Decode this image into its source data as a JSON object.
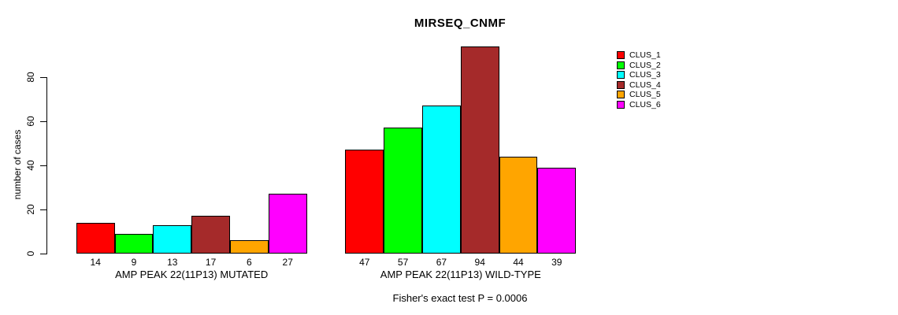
{
  "chart_data": {
    "type": "bar",
    "title": "MIRSEQ_CNMF",
    "ylabel": "number of cases",
    "annotation": "Fisher's exact test P = 0.0006",
    "ylim": [
      0,
      94
    ],
    "yticks": [
      0,
      20,
      40,
      60,
      80
    ],
    "grid": false,
    "legend_position": "right-outside",
    "series": [
      {
        "name": "CLUS_1",
        "color": "#FF0000"
      },
      {
        "name": "CLUS_2",
        "color": "#00FF00"
      },
      {
        "name": "CLUS_3",
        "color": "#00FFFF"
      },
      {
        "name": "CLUS_4",
        "color": "#A52A2A"
      },
      {
        "name": "CLUS_5",
        "color": "#FFA500"
      },
      {
        "name": "CLUS_6",
        "color": "#FF00FF"
      }
    ],
    "groups": [
      {
        "label": "AMP PEAK 22(11P13) MUTATED",
        "values": [
          14,
          9,
          13,
          17,
          6,
          27
        ]
      },
      {
        "label": "AMP PEAK 22(11P13) WILD-TYPE",
        "values": [
          47,
          57,
          67,
          94,
          44,
          39
        ]
      }
    ]
  }
}
